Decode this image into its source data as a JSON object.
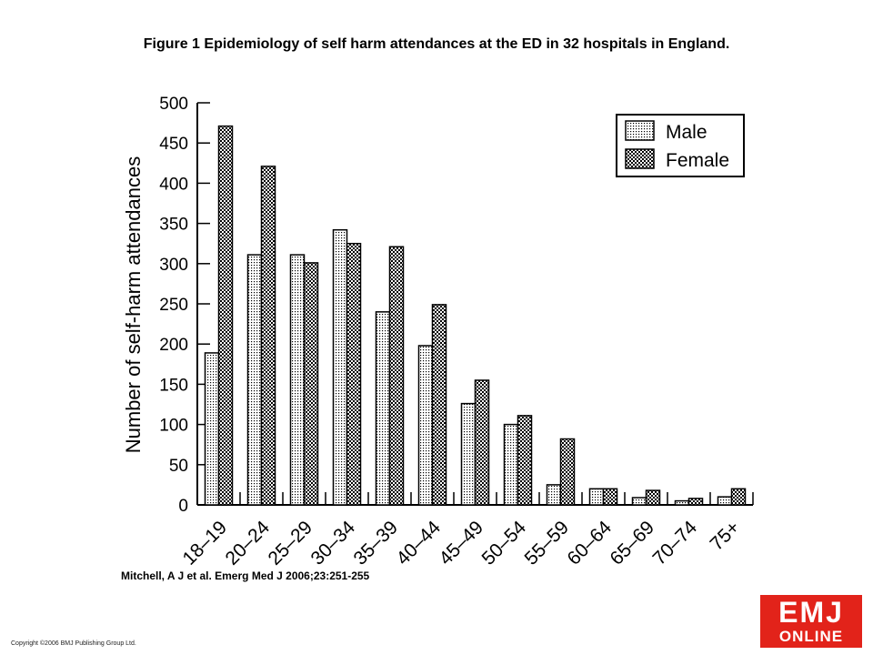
{
  "title": "Figure 1 Epidemiology of self harm attendances at the ED in 32 hospitals in England.",
  "citation": "Mitchell, A J et al. Emerg Med J 2006;23:251-255",
  "copyright": "Copyright ©2006 BMJ Publishing Group Ltd.",
  "logo": {
    "line1": "EMJ",
    "line2": "ONLINE",
    "color": "#e2231a"
  },
  "chart_data": {
    "type": "bar",
    "title": "",
    "xlabel": "",
    "ylabel": "Number of self-harm attendances",
    "ylim": [
      0,
      500
    ],
    "yticks": [
      0,
      50,
      100,
      150,
      200,
      250,
      300,
      350,
      400,
      450,
      500
    ],
    "categories": [
      "18–19",
      "20–24",
      "25–29",
      "30–34",
      "35–39",
      "40–44",
      "45–49",
      "50–54",
      "55–59",
      "60–64",
      "65–69",
      "70–74",
      "75+"
    ],
    "series": [
      {
        "name": "Male",
        "pattern": "dotted",
        "values": [
          189,
          311,
          311,
          342,
          240,
          198,
          126,
          100,
          25,
          20,
          9,
          5,
          10
        ]
      },
      {
        "name": "Female",
        "pattern": "crosshatch",
        "values": [
          471,
          421,
          301,
          325,
          321,
          249,
          155,
          111,
          82,
          20,
          18,
          8,
          20
        ]
      }
    ],
    "legend": "top-right",
    "grid": false
  }
}
